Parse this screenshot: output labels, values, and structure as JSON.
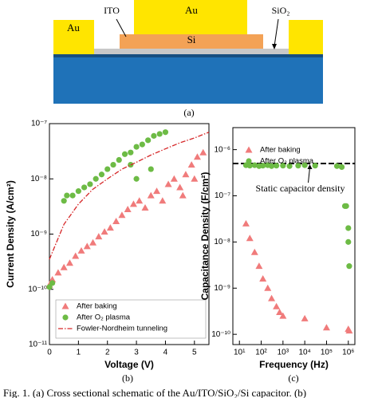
{
  "schematic": {
    "labels": {
      "au_left": "Au",
      "au_top": "Au",
      "ito": "ITO",
      "sio2": "SiO₂",
      "si": "Si"
    },
    "caption": "(a)"
  },
  "chart_data": [
    {
      "type": "scatter",
      "caption": "(b)",
      "xlabel": "Voltage (V)",
      "ylabel": "Current Density (A/cm²)",
      "xlim": [
        0,
        5.5
      ],
      "xticks": [
        0,
        1,
        2,
        3,
        4,
        5
      ],
      "ylim": [
        1e-11,
        1e-07
      ],
      "ylog": true,
      "yticks": [
        {
          "value": 1e-11,
          "label": "10⁻¹¹"
        },
        {
          "value": 1e-10,
          "label": "10⁻¹⁰"
        },
        {
          "value": 1e-09,
          "label": "10⁻⁹"
        },
        {
          "value": 1e-08,
          "label": "10⁻⁸"
        },
        {
          "value": 1e-07,
          "label": "10⁻⁷"
        }
      ],
      "legend": "lower right",
      "series": [
        {
          "name": "After baking",
          "marker": "triangle",
          "color": "#f07b7b",
          "x": [
            0,
            0.1,
            0.3,
            0.5,
            0.7,
            0.9,
            1.1,
            1.3,
            1.5,
            1.7,
            1.9,
            2.1,
            2.3,
            2.5,
            2.7,
            2.9,
            3.1,
            3.3,
            3.5,
            3.7,
            3.9,
            4.1,
            4.3,
            4.5,
            4.6,
            4.7,
            4.9,
            5.0,
            5.1,
            5.3
          ],
          "values": [
            1.2e-10,
            1.5e-10,
            2e-10,
            2.5e-10,
            3e-10,
            4e-10,
            5e-10,
            6e-10,
            7e-10,
            9e-10,
            1.1e-09,
            1.3e-09,
            1.7e-09,
            2.2e-09,
            2.8e-09,
            3.5e-09,
            4e-09,
            3e-09,
            5e-09,
            6e-09,
            4e-09,
            8e-09,
            1e-08,
            7e-09,
            5e-09,
            1.2e-08,
            1.8e-08,
            1e-08,
            2.5e-08,
            3e-08
          ]
        },
        {
          "name": "After O₂ plasma",
          "marker": "circle",
          "color": "#6dbb45",
          "x": [
            0,
            0.1,
            0.5,
            0.6,
            0.8,
            1.0,
            1.2,
            1.4,
            1.6,
            1.8,
            2.0,
            2.2,
            2.4,
            2.6,
            2.8,
            2.8,
            3.0,
            3.0,
            3.2,
            3.4,
            3.5,
            3.6,
            3.8,
            4.0
          ],
          "values": [
            1.1e-10,
            1.3e-10,
            4e-09,
            5e-09,
            5e-09,
            6e-09,
            7e-09,
            8e-09,
            1e-08,
            1.2e-08,
            1.5e-08,
            1.8e-08,
            2.2e-08,
            2.8e-08,
            3e-08,
            1.8e-08,
            3.8e-08,
            1e-08,
            4.2e-08,
            5e-08,
            1.5e-08,
            6e-08,
            6.5e-08,
            7e-08
          ]
        },
        {
          "name": "Fowler-Nordheim tunneling",
          "marker": "line",
          "color": "#d62728",
          "x": [
            0,
            0.5,
            1,
            1.5,
            2,
            2.5,
            3,
            3.5,
            4,
            4.5,
            5,
            5.5
          ],
          "values": [
            3.5e-10,
            1.5e-09,
            3.5e-09,
            6.5e-09,
            1e-08,
            1.5e-08,
            2e-08,
            2.7e-08,
            3.5e-08,
            4.5e-08,
            5.5e-08,
            7e-08
          ]
        }
      ]
    },
    {
      "type": "scatter",
      "caption": "(c)",
      "xlabel": "Frequency (Hz)",
      "ylabel": "Capacitance Density (F/cm²)",
      "xlim": [
        5,
        2000000
      ],
      "xlog": true,
      "xticks": [
        {
          "value": 10,
          "label": "10¹"
        },
        {
          "value": 100,
          "label": "10²"
        },
        {
          "value": 1000,
          "label": "10³"
        },
        {
          "value": 10000,
          "label": "10⁴"
        },
        {
          "value": 100000,
          "label": "10⁵"
        },
        {
          "value": 1000000,
          "label": "10⁶"
        }
      ],
      "ylim": [
        6e-11,
        3e-06
      ],
      "ylog": true,
      "yticks": [
        {
          "value": 1e-10,
          "label": "10⁻¹⁰"
        },
        {
          "value": 1e-09,
          "label": "10⁻⁹"
        },
        {
          "value": 1e-08,
          "label": "10⁻⁸"
        },
        {
          "value": 1e-07,
          "label": "10⁻⁷"
        },
        {
          "value": 1e-06,
          "label": "10⁻⁶"
        }
      ],
      "legend": "upper left",
      "reference_line": {
        "value": 5e-07,
        "label": "Static capacitor density"
      },
      "series": [
        {
          "name": "After baking",
          "marker": "triangle",
          "color": "#f07b7b",
          "x": [
            20,
            30,
            50,
            80,
            120,
            200,
            300,
            500,
            700,
            1000,
            10000,
            100000,
            1000000,
            1100000
          ],
          "values": [
            2.5e-08,
            1.2e-08,
            6e-09,
            3e-09,
            1.6e-09,
            1e-09,
            6e-10,
            4e-10,
            3e-10,
            2.5e-10,
            2.2e-10,
            1.4e-10,
            1.3e-10,
            1.2e-10
          ]
        },
        {
          "name": "After O₂ plasma",
          "marker": "circle",
          "color": "#6dbb45",
          "x": [
            20,
            30,
            50,
            80,
            120,
            200,
            300,
            500,
            1000,
            2000,
            5000,
            10000,
            30000,
            300000,
            500000,
            700000,
            800000,
            1000000,
            1000000,
            1100000
          ],
          "values": [
            4.6e-07,
            4.5e-07,
            4.6e-07,
            4.4e-07,
            4.5e-07,
            4.6e-07,
            4.4e-07,
            4.5e-07,
            4.5e-07,
            4.4e-07,
            4.5e-07,
            4.6e-07,
            4.5e-07,
            4.4e-07,
            4.2e-07,
            6e-08,
            6e-08,
            2e-08,
            1e-08,
            3e-09
          ]
        }
      ]
    }
  ],
  "figure_caption": "Fig. 1.  (a) Cross sectional schematic of the Au/ITO/SiO₂/Si capacitor. (b)"
}
